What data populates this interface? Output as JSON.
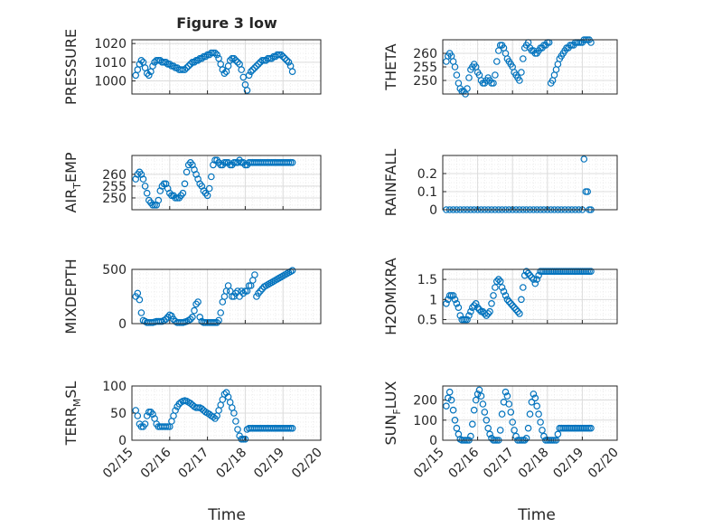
{
  "figure": {
    "title": "Figure 3 low",
    "xlabel": "Time",
    "date_ticks": [
      "02/15",
      "02/16",
      "02/17",
      "02/18",
      "02/19",
      "02/20"
    ],
    "colors": {
      "marker": "#0072bd",
      "grid": "#dcdcdc",
      "axis": "#262626"
    }
  },
  "chart_data": [
    {
      "id": "pressure",
      "type": "scatter",
      "title": "Figure 3 low",
      "ylabel": "PRESSURE",
      "ylabel_sub": "",
      "ylabel_tail": "",
      "ylim": [
        993,
        1022
      ],
      "yticks": [
        1000,
        1010,
        1020
      ],
      "xlim": [
        0,
        5
      ],
      "x_ticklabels_shown": false,
      "x": [
        0.1,
        0.15,
        0.2,
        0.25,
        0.3,
        0.35,
        0.4,
        0.45,
        0.5,
        0.55,
        0.6,
        0.65,
        0.7,
        0.75,
        0.8,
        0.85,
        0.9,
        0.95,
        1.0,
        1.05,
        1.1,
        1.15,
        1.2,
        1.25,
        1.3,
        1.35,
        1.4,
        1.45,
        1.5,
        1.55,
        1.6,
        1.65,
        1.7,
        1.75,
        1.8,
        1.85,
        1.9,
        1.95,
        2.0,
        2.05,
        2.1,
        2.15,
        2.2,
        2.25,
        2.3,
        2.35,
        2.4,
        2.45,
        2.5,
        2.55,
        2.6,
        2.65,
        2.7,
        2.75,
        2.8,
        2.85,
        2.9,
        2.95,
        3.0,
        3.05,
        3.1,
        3.15,
        3.2,
        3.25,
        3.3,
        3.35,
        3.4,
        3.45,
        3.5,
        3.55,
        3.6,
        3.65,
        3.7,
        3.75,
        3.8,
        3.85,
        3.9,
        3.95,
        4.0,
        4.05,
        4.1,
        4.15,
        4.2,
        4.25
      ],
      "y": [
        1003,
        1006,
        1009,
        1011,
        1010,
        1007,
        1004,
        1003,
        1005,
        1008,
        1010,
        1011,
        1011,
        1011,
        1010,
        1010,
        1010,
        1009,
        1009,
        1008,
        1008,
        1007,
        1007,
        1006,
        1006,
        1006,
        1006,
        1007,
        1008,
        1009,
        1010,
        1010,
        1011,
        1011,
        1012,
        1012,
        1013,
        1013,
        1014,
        1014,
        1015,
        1015,
        1015,
        1014,
        1012,
        1009,
        1006,
        1004,
        1005,
        1008,
        1011,
        1012,
        1012,
        1011,
        1010,
        1009,
        1006,
        1002,
        998,
        995,
        1003,
        1005,
        1006,
        1007,
        1008,
        1009,
        1010,
        1011,
        1011,
        1011,
        1012,
        1012,
        1012,
        1013,
        1013,
        1014,
        1014,
        1014,
        1013,
        1012,
        1011,
        1010,
        1008,
        1005
      ]
    },
    {
      "id": "theta",
      "type": "scatter",
      "title": "",
      "ylabel": "THETA",
      "ylabel_sub": "",
      "ylabel_tail": "",
      "ylim": [
        245,
        265
      ],
      "yticks": [
        250,
        255,
        260
      ],
      "xlim": [
        0,
        5
      ],
      "x_ticklabels_shown": false,
      "x": [
        0.1,
        0.15,
        0.2,
        0.25,
        0.3,
        0.35,
        0.4,
        0.45,
        0.5,
        0.55,
        0.6,
        0.65,
        0.7,
        0.75,
        0.8,
        0.85,
        0.9,
        0.95,
        1.0,
        1.05,
        1.1,
        1.15,
        1.2,
        1.25,
        1.3,
        1.35,
        1.4,
        1.45,
        1.5,
        1.55,
        1.6,
        1.65,
        1.7,
        1.75,
        1.8,
        1.85,
        1.9,
        1.95,
        2.0,
        2.05,
        2.1,
        2.15,
        2.2,
        2.25,
        2.3,
        2.35,
        2.4,
        2.45,
        2.5,
        2.55,
        2.6,
        2.65,
        2.7,
        2.75,
        2.8,
        2.85,
        2.9,
        2.95,
        3.0,
        3.05,
        3.1,
        3.15,
        3.2,
        3.25,
        3.3,
        3.35,
        3.4,
        3.45,
        3.5,
        3.55,
        3.6,
        3.65,
        3.7,
        3.75,
        3.8,
        3.85,
        3.9,
        3.95,
        4.0,
        4.05,
        4.1,
        4.15,
        4.2,
        4.25
      ],
      "y": [
        257,
        259,
        260,
        259,
        257,
        255,
        252,
        249,
        247,
        246,
        246,
        245,
        247,
        251,
        254,
        255,
        256,
        255,
        253,
        252,
        250,
        249,
        249,
        250,
        251,
        250,
        249,
        249,
        252,
        257,
        261,
        263,
        263,
        262,
        260,
        258,
        257,
        256,
        255,
        253,
        252,
        251,
        250,
        253,
        258,
        262,
        263,
        264,
        262,
        261,
        261,
        260,
        260,
        261,
        262,
        262,
        263,
        263,
        264,
        264,
        249,
        250,
        252,
        254,
        256,
        258,
        259,
        260,
        261,
        262,
        262,
        263,
        263,
        263,
        264,
        264,
        264,
        264,
        264,
        265,
        265,
        265,
        265,
        264
      ]
    },
    {
      "id": "airtemp",
      "type": "scatter",
      "title": "",
      "ylabel": "AIR",
      "ylabel_sub": "T",
      "ylabel_tail": "EMP",
      "ylim": [
        245,
        268
      ],
      "yticks": [
        250,
        255,
        260
      ],
      "xlim": [
        0,
        5
      ],
      "x_ticklabels_shown": false,
      "x": [
        0.1,
        0.15,
        0.2,
        0.25,
        0.3,
        0.35,
        0.4,
        0.45,
        0.5,
        0.55,
        0.6,
        0.65,
        0.7,
        0.75,
        0.8,
        0.85,
        0.9,
        0.95,
        1.0,
        1.05,
        1.1,
        1.15,
        1.2,
        1.25,
        1.3,
        1.35,
        1.4,
        1.45,
        1.5,
        1.55,
        1.6,
        1.65,
        1.7,
        1.75,
        1.8,
        1.85,
        1.9,
        1.95,
        2.0,
        2.05,
        2.1,
        2.15,
        2.2,
        2.25,
        2.3,
        2.35,
        2.4,
        2.45,
        2.5,
        2.55,
        2.6,
        2.65,
        2.7,
        2.75,
        2.8,
        2.85,
        2.9,
        2.95,
        3.0,
        3.05,
        3.1,
        3.15,
        3.2,
        3.25,
        3.3,
        3.35,
        3.4,
        3.45,
        3.5,
        3.55,
        3.6,
        3.65,
        3.7,
        3.75,
        3.8,
        3.85,
        3.9,
        3.95,
        4.0,
        4.05,
        4.1,
        4.15,
        4.2,
        4.25
      ],
      "y": [
        258,
        260,
        261,
        260,
        258,
        255,
        252,
        249,
        248,
        247,
        247,
        247,
        249,
        253,
        255,
        256,
        256,
        254,
        252,
        251,
        251,
        250,
        250,
        250,
        251,
        252,
        256,
        261,
        264,
        265,
        264,
        262,
        260,
        258,
        256,
        255,
        253,
        252,
        251,
        254,
        259,
        264,
        266,
        266,
        265,
        264,
        264,
        265,
        265,
        265,
        264,
        264,
        265,
        265,
        265,
        266,
        265,
        265,
        264,
        264,
        265,
        265,
        265,
        265,
        265,
        265,
        265,
        265,
        265,
        265,
        265,
        265,
        265,
        265,
        265,
        265,
        265,
        265,
        265,
        265,
        265,
        265,
        265,
        265
      ]
    },
    {
      "id": "rainfall",
      "type": "scatter",
      "title": "",
      "ylabel": "RAINFALL",
      "ylabel_sub": "",
      "ylabel_tail": "",
      "ylim": [
        0,
        0.3
      ],
      "yticks": [
        0,
        0.1,
        0.2
      ],
      "xlim": [
        0,
        5
      ],
      "x_ticklabels_shown": false,
      "x": [
        0.1,
        0.2,
        0.3,
        0.4,
        0.5,
        0.6,
        0.7,
        0.8,
        0.9,
        1.0,
        1.1,
        1.2,
        1.3,
        1.4,
        1.5,
        1.6,
        1.7,
        1.8,
        1.9,
        2.0,
        2.1,
        2.2,
        2.3,
        2.4,
        2.5,
        2.6,
        2.7,
        2.8,
        2.9,
        3.0,
        3.1,
        3.2,
        3.3,
        3.4,
        3.5,
        3.6,
        3.7,
        3.8,
        3.9,
        4.0,
        4.05,
        4.1,
        4.15,
        4.2,
        4.25
      ],
      "y": [
        0,
        0,
        0,
        0,
        0,
        0,
        0,
        0,
        0,
        0,
        0,
        0,
        0,
        0,
        0,
        0,
        0,
        0,
        0,
        0,
        0,
        0,
        0,
        0,
        0,
        0,
        0,
        0,
        0,
        0,
        0,
        0,
        0,
        0,
        0,
        0,
        0,
        0,
        0,
        0,
        0.28,
        0.1,
        0.1,
        0,
        0
      ]
    },
    {
      "id": "mixdepth",
      "type": "scatter",
      "title": "",
      "ylabel": "MIXDEPTH",
      "ylabel_sub": "",
      "ylabel_tail": "",
      "ylim": [
        0,
        500
      ],
      "yticks": [
        0,
        500
      ],
      "xlim": [
        0,
        5
      ],
      "x_ticklabels_shown": false,
      "x": [
        0.1,
        0.15,
        0.2,
        0.25,
        0.3,
        0.35,
        0.4,
        0.45,
        0.5,
        0.55,
        0.6,
        0.65,
        0.7,
        0.75,
        0.8,
        0.85,
        0.9,
        0.95,
        1.0,
        1.05,
        1.1,
        1.15,
        1.2,
        1.25,
        1.3,
        1.35,
        1.4,
        1.45,
        1.5,
        1.55,
        1.6,
        1.65,
        1.7,
        1.75,
        1.8,
        1.85,
        1.9,
        1.95,
        2.0,
        2.05,
        2.1,
        2.15,
        2.2,
        2.25,
        2.3,
        2.35,
        2.4,
        2.45,
        2.5,
        2.55,
        2.6,
        2.65,
        2.7,
        2.75,
        2.8,
        2.85,
        2.9,
        2.95,
        3.0,
        3.05,
        3.1,
        3.15,
        3.2,
        3.25,
        3.3,
        3.35,
        3.4,
        3.45,
        3.5,
        3.55,
        3.6,
        3.65,
        3.7,
        3.75,
        3.8,
        3.85,
        3.9,
        3.95,
        4.0,
        4.05,
        4.1,
        4.15,
        4.2,
        4.25
      ],
      "y": [
        250,
        280,
        220,
        100,
        30,
        20,
        10,
        10,
        10,
        10,
        15,
        20,
        20,
        20,
        20,
        30,
        40,
        60,
        80,
        70,
        40,
        20,
        10,
        10,
        10,
        10,
        15,
        20,
        30,
        40,
        60,
        120,
        180,
        200,
        60,
        20,
        10,
        10,
        10,
        10,
        10,
        10,
        10,
        10,
        30,
        100,
        200,
        250,
        300,
        350,
        300,
        250,
        250,
        280,
        300,
        250,
        300,
        280,
        300,
        300,
        350,
        350,
        400,
        450,
        250,
        280,
        300,
        320,
        340,
        350,
        360,
        370,
        380,
        390,
        400,
        410,
        420,
        430,
        440,
        450,
        460,
        470,
        480,
        490
      ]
    },
    {
      "id": "h2omixra",
      "type": "scatter",
      "title": "",
      "ylabel": "H2OMIXRA",
      "ylabel_sub": "",
      "ylabel_tail": "",
      "ylim": [
        0.4,
        1.75
      ],
      "yticks": [
        0.5,
        1,
        1.5
      ],
      "xlim": [
        0,
        5
      ],
      "x_ticklabels_shown": false,
      "x": [
        0.1,
        0.15,
        0.2,
        0.25,
        0.3,
        0.35,
        0.4,
        0.45,
        0.5,
        0.55,
        0.6,
        0.65,
        0.7,
        0.75,
        0.8,
        0.85,
        0.9,
        0.95,
        1.0,
        1.05,
        1.1,
        1.15,
        1.2,
        1.25,
        1.3,
        1.35,
        1.4,
        1.45,
        1.5,
        1.55,
        1.6,
        1.65,
        1.7,
        1.75,
        1.8,
        1.85,
        1.9,
        1.95,
        2.0,
        2.05,
        2.1,
        2.15,
        2.2,
        2.25,
        2.3,
        2.35,
        2.4,
        2.45,
        2.5,
        2.55,
        2.6,
        2.65,
        2.7,
        2.75,
        2.8,
        2.85,
        2.9,
        2.95,
        3.0,
        3.05,
        3.1,
        3.15,
        3.2,
        3.25,
        3.3,
        3.35,
        3.4,
        3.45,
        3.5,
        3.55,
        3.6,
        3.65,
        3.7,
        3.75,
        3.8,
        3.85,
        3.9,
        3.95,
        4.0,
        4.05,
        4.1,
        4.15,
        4.2,
        4.25
      ],
      "y": [
        0.9,
        1.0,
        1.1,
        1.1,
        1.1,
        1.0,
        0.9,
        0.8,
        0.6,
        0.5,
        0.5,
        0.5,
        0.5,
        0.6,
        0.7,
        0.8,
        0.85,
        0.9,
        0.8,
        0.75,
        0.7,
        0.7,
        0.65,
        0.6,
        0.65,
        0.7,
        0.9,
        1.1,
        1.3,
        1.45,
        1.5,
        1.45,
        1.3,
        1.2,
        1.1,
        1.0,
        0.95,
        0.9,
        0.85,
        0.8,
        0.75,
        0.7,
        0.65,
        1.0,
        1.3,
        1.6,
        1.7,
        1.65,
        1.6,
        1.55,
        1.5,
        1.4,
        1.5,
        1.6,
        1.7,
        1.7,
        1.7,
        1.7,
        1.7,
        1.7,
        1.7,
        1.7,
        1.7,
        1.7,
        1.7,
        1.7,
        1.7,
        1.7,
        1.7,
        1.7,
        1.7,
        1.7,
        1.7,
        1.7,
        1.7,
        1.7,
        1.7,
        1.7,
        1.7,
        1.7,
        1.7,
        1.7,
        1.7,
        1.7
      ]
    },
    {
      "id": "terrmsl",
      "type": "scatter",
      "title": "",
      "ylabel": "TERR",
      "ylabel_sub": "M",
      "ylabel_tail": "SL",
      "ylim": [
        0,
        100
      ],
      "yticks": [
        0,
        50,
        100
      ],
      "xlim": [
        0,
        5
      ],
      "x_ticklabels_shown": true,
      "x": [
        0.1,
        0.15,
        0.2,
        0.25,
        0.3,
        0.35,
        0.4,
        0.45,
        0.5,
        0.55,
        0.6,
        0.65,
        0.7,
        0.75,
        0.8,
        0.85,
        0.9,
        0.95,
        1.0,
        1.05,
        1.1,
        1.15,
        1.2,
        1.25,
        1.3,
        1.35,
        1.4,
        1.45,
        1.5,
        1.55,
        1.6,
        1.65,
        1.7,
        1.75,
        1.8,
        1.85,
        1.9,
        1.95,
        2.0,
        2.05,
        2.1,
        2.15,
        2.2,
        2.25,
        2.3,
        2.35,
        2.4,
        2.45,
        2.5,
        2.55,
        2.6,
        2.65,
        2.7,
        2.75,
        2.8,
        2.85,
        2.9,
        2.95,
        3.0,
        3.05,
        3.1,
        3.15,
        3.2,
        3.25,
        3.3,
        3.35,
        3.4,
        3.45,
        3.5,
        3.55,
        3.6,
        3.65,
        3.7,
        3.75,
        3.8,
        3.85,
        3.9,
        3.95,
        4.0,
        4.05,
        4.1,
        4.15,
        4.2,
        4.25
      ],
      "y": [
        55,
        45,
        30,
        25,
        25,
        30,
        45,
        52,
        52,
        48,
        40,
        30,
        25,
        25,
        25,
        25,
        25,
        25,
        25,
        35,
        45,
        55,
        62,
        67,
        70,
        72,
        73,
        72,
        70,
        68,
        65,
        62,
        60,
        60,
        60,
        58,
        55,
        52,
        50,
        48,
        45,
        43,
        40,
        45,
        55,
        65,
        75,
        85,
        88,
        80,
        70,
        60,
        50,
        35,
        20,
        8,
        2,
        2,
        2,
        20,
        22,
        22,
        22,
        22,
        22,
        22,
        22,
        22,
        22,
        22,
        22,
        22,
        22,
        22,
        22,
        22,
        22,
        22,
        22,
        22,
        22,
        22,
        22,
        22
      ]
    },
    {
      "id": "sunflux",
      "type": "scatter",
      "title": "",
      "ylabel": "SUN",
      "ylabel_sub": "F",
      "ylabel_tail": "LUX",
      "ylim": [
        0,
        270
      ],
      "yticks": [
        0,
        100,
        200
      ],
      "xlim": [
        0,
        5
      ],
      "x_ticklabels_shown": true,
      "x": [
        0.1,
        0.15,
        0.2,
        0.25,
        0.3,
        0.35,
        0.4,
        0.45,
        0.5,
        0.55,
        0.6,
        0.65,
        0.7,
        0.75,
        0.8,
        0.85,
        0.9,
        0.95,
        1.0,
        1.05,
        1.1,
        1.15,
        1.2,
        1.25,
        1.3,
        1.35,
        1.4,
        1.45,
        1.5,
        1.55,
        1.6,
        1.65,
        1.7,
        1.75,
        1.8,
        1.85,
        1.9,
        1.95,
        2.0,
        2.05,
        2.1,
        2.15,
        2.2,
        2.25,
        2.3,
        2.35,
        2.4,
        2.45,
        2.5,
        2.55,
        2.6,
        2.65,
        2.7,
        2.75,
        2.8,
        2.85,
        2.9,
        2.95,
        3.0,
        3.05,
        3.1,
        3.15,
        3.2,
        3.25,
        3.3,
        3.35,
        3.4,
        3.45,
        3.5,
        3.55,
        3.6,
        3.65,
        3.7,
        3.75,
        3.8,
        3.85,
        3.9,
        3.95,
        4.0,
        4.05,
        4.1,
        4.15,
        4.2,
        4.25
      ],
      "y": [
        170,
        210,
        240,
        200,
        150,
        100,
        60,
        30,
        5,
        0,
        0,
        0,
        0,
        0,
        20,
        80,
        150,
        200,
        230,
        250,
        220,
        180,
        140,
        100,
        60,
        30,
        10,
        0,
        0,
        0,
        0,
        50,
        130,
        190,
        240,
        220,
        180,
        140,
        90,
        50,
        20,
        0,
        0,
        0,
        0,
        0,
        10,
        60,
        130,
        190,
        230,
        210,
        170,
        130,
        90,
        50,
        20,
        0,
        0,
        0,
        0,
        0,
        0,
        0,
        30,
        60,
        60,
        60,
        60,
        60,
        60,
        60,
        60,
        60,
        60,
        60,
        60,
        60,
        60,
        60,
        60,
        60,
        60,
        60
      ]
    }
  ]
}
